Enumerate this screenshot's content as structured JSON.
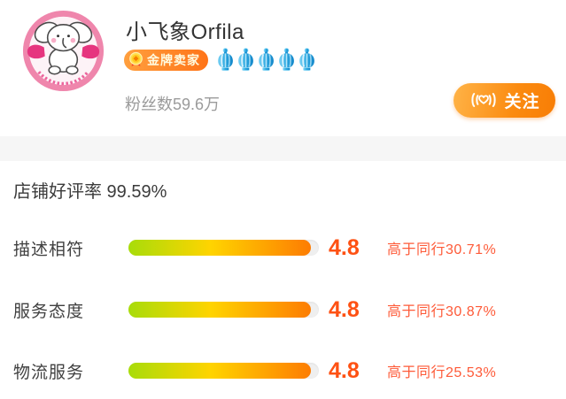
{
  "header": {
    "shop_name": "小飞象Orfila",
    "seller_badge": "金牌卖家",
    "crowns": 5,
    "fans": "粉丝数59.6万",
    "follow_label": "关注"
  },
  "stats": {
    "title": "店铺好评率 99.59%",
    "rows": [
      {
        "label": "描述相符",
        "score": "4.8",
        "compare": "高于同行30.71%",
        "fill": "96%"
      },
      {
        "label": "服务态度",
        "score": "4.8",
        "compare": "高于同行30.87%",
        "fill": "96%"
      },
      {
        "label": "物流服务",
        "score": "4.8",
        "compare": "高于同行25.53%",
        "fill": "96%"
      }
    ]
  },
  "icons": {
    "avatar": "flying-elephant-logo",
    "badge_icon": "gold-medal-icon",
    "rank_icon": "blue-crown-icon",
    "follow_icon": "heart-signal-icon"
  },
  "colors": {
    "accent_orange": "#ff7a00",
    "badge_gradient": [
      "#ff9f3e",
      "#ff7418"
    ],
    "follow_gradient": [
      "#ffb347",
      "#f87d05"
    ],
    "score_red": "#fe5113",
    "compare_red": "#fe5a38",
    "bar_gradient": [
      "#a8dc0a",
      "#ffd400",
      "#fd7c02"
    ],
    "crown_blue": "#2da9e1",
    "avatar_pink": "#ef86ac",
    "divider_gray": "#f6f6f6",
    "fans_gray": "#9b9b9b"
  }
}
